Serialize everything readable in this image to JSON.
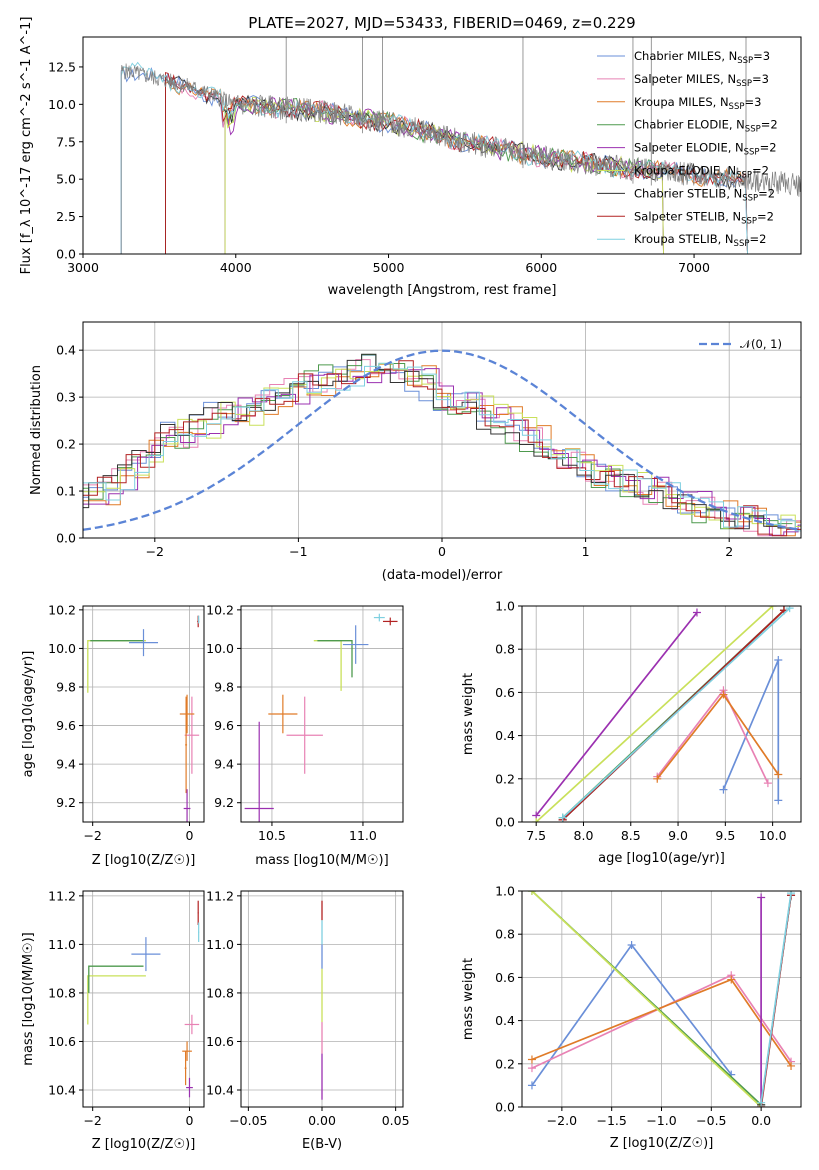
{
  "chart_data": [
    {
      "type": "line",
      "title": "PLATE=2027, MJD=53433, FIBERID=0469, z=0.229",
      "xlabel": "wavelength [Angstrom, rest frame]",
      "ylabel": "Flux [f_λ 10^-17 erg cm^-2 s^-1 A^-1]",
      "xlim": [
        3000,
        7700
      ],
      "ylim": [
        0,
        14.5
      ],
      "xticks": [
        "3000",
        "4000",
        "5000",
        "6000",
        "7000"
      ],
      "yticks": [
        "0.0",
        "2.5",
        "5.0",
        "7.5",
        "10.0",
        "12.5"
      ],
      "grid": false,
      "legend_position": "top-right",
      "legend": [
        {
          "name": "Chabrier MILES, N",
          "sub": "SSP",
          "suffix": "=3",
          "color": "#6a8fd8"
        },
        {
          "name": "Salpeter MILES, N",
          "sub": "SSP",
          "suffix": "=3",
          "color": "#e882b4"
        },
        {
          "name": "Kroupa MILES, N",
          "sub": "SSP",
          "suffix": "=3",
          "color": "#e07b28"
        },
        {
          "name": "Chabrier ELODIE, N",
          "sub": "SSP",
          "suffix": "=2",
          "color": "#4e9a4e"
        },
        {
          "name": "Salpeter ELODIE, N",
          "sub": "SSP",
          "suffix": "=2",
          "color": "#9b30b0"
        },
        {
          "name": "Kroupa ELODIE, N",
          "sub": "SSP",
          "suffix": "=2",
          "color": "#c9e05a"
        },
        {
          "name": "Chabrier STELIB, N",
          "sub": "SSP",
          "suffix": "=2",
          "color": "#333333"
        },
        {
          "name": "Salpeter STELIB, N",
          "sub": "SSP",
          "suffix": "=2",
          "color": "#b22222"
        },
        {
          "name": "Kroupa STELIB, N",
          "sub": "SSP",
          "suffix": "=2",
          "color": "#7fd0e0"
        }
      ],
      "data_spectrum": {
        "color": "#808080",
        "x_start": 3250,
        "x_end": 7700,
        "level_at_3300": 12.2,
        "level_at_4000": 10.0,
        "level_at_5000": 8.8,
        "level_at_6000": 6.5,
        "level_at_7000": 5.3,
        "level_at_7700": 4.6
      },
      "model_starts": [
        3250,
        3540,
        3540,
        3930,
        3930,
        3930,
        3540,
        3540,
        3250
      ],
      "model_ends": [
        7350,
        7350,
        7350,
        6800,
        6800,
        6800,
        7350,
        7350,
        7350
      ],
      "spikes": [
        4330,
        4830,
        4960,
        5880,
        6600,
        6720,
        7340
      ]
    },
    {
      "type": "bar",
      "xlabel": "(data-model)/error",
      "ylabel": "Normed distribution",
      "xlim": [
        -2.5,
        2.5
      ],
      "ylim": [
        0,
        0.46
      ],
      "xticks": [
        "-2",
        "-1",
        "0",
        "1",
        "2"
      ],
      "yticks": [
        "0.0",
        "0.1",
        "0.2",
        "0.3",
        "0.4"
      ],
      "grid": true,
      "legend_position": "top-right",
      "gaussian_label": "𝒩(0, 1)",
      "gaussian_color": "#5b84d6",
      "bin_start": -2.5,
      "bin_width": 0.1,
      "base_hist": [
        0.09,
        0.1,
        0.12,
        0.15,
        0.18,
        0.2,
        0.23,
        0.22,
        0.24,
        0.26,
        0.27,
        0.27,
        0.29,
        0.3,
        0.31,
        0.32,
        0.33,
        0.34,
        0.35,
        0.36,
        0.37,
        0.36,
        0.35,
        0.34,
        0.32,
        0.3,
        0.29,
        0.28,
        0.26,
        0.25,
        0.23,
        0.21,
        0.19,
        0.17,
        0.16,
        0.14,
        0.13,
        0.12,
        0.11,
        0.1,
        0.09,
        0.08,
        0.07,
        0.06,
        0.05,
        0.04,
        0.04,
        0.03,
        0.03,
        0.02
      ],
      "series_colors": [
        "#6a8fd8",
        "#e882b4",
        "#e07b28",
        "#4e9a4e",
        "#9b30b0",
        "#c9e05a",
        "#333333",
        "#b22222",
        "#7fd0e0"
      ]
    },
    {
      "type": "scatter",
      "xlabel": "Z [log10(Z/Z☉)]",
      "ylabel": "age [log10(age/yr)]",
      "xlim": [
        -2.2,
        0.3
      ],
      "ylim": [
        9.1,
        10.22
      ],
      "xticks": [
        {
          "v": -2,
          "t": "−2"
        },
        {
          "v": 0,
          "t": "0"
        }
      ],
      "yticks": [
        {
          "v": 9.2,
          "t": "9.2"
        },
        {
          "v": 9.4,
          "t": "9.4"
        },
        {
          "v": 9.6,
          "t": "9.6"
        },
        {
          "v": 9.8,
          "t": "9.8"
        },
        {
          "v": 10.0,
          "t": "10.0"
        },
        {
          "v": 10.2,
          "t": "10.2"
        }
      ],
      "points": [
        {
          "x": -0.95,
          "y": 10.03,
          "ex": 0.3,
          "ey": 0.07,
          "c": "#6a8fd8"
        },
        {
          "x": 0.05,
          "y": 9.55,
          "ex": 0.15,
          "ey": 0.2,
          "c": "#e882b4"
        },
        {
          "x": -0.05,
          "y": 9.66,
          "ex": 0.15,
          "ey": 0.1,
          "c": "#e07b28"
        },
        {
          "x": -0.07,
          "y": 9.5,
          "ex": 0.02,
          "ey": 0.25,
          "c": "#e07b28"
        },
        {
          "x": -0.05,
          "y": 9.17,
          "ex": 0.07,
          "ey": 0.1,
          "c": "#9b30b0"
        },
        {
          "x": 0.18,
          "y": 10.14,
          "ex": 0.02,
          "ey": 0.03,
          "c": "#b22222"
        },
        {
          "x": 0.19,
          "y": 10.15,
          "ex": 0.01,
          "ey": 0.02,
          "c": "#7fd0e0"
        }
      ],
      "lines": [
        {
          "x": [
            -2.1,
            -2.1,
            -0.9
          ],
          "y": [
            9.77,
            10.04,
            10.04
          ],
          "c": "#c9e05a"
        },
        {
          "x": [
            -2.05,
            -0.95
          ],
          "y": [
            10.04,
            10.04
          ],
          "c": "#4e9a4e"
        }
      ]
    },
    {
      "type": "scatter",
      "xlabel": "mass [log10(M/M☉)]",
      "ylabel": "",
      "xlim": [
        10.33,
        11.22
      ],
      "ylim": [
        9.1,
        10.22
      ],
      "xticks": [
        {
          "v": 10.5,
          "t": "10.5"
        },
        {
          "v": 11.0,
          "t": "11.0"
        }
      ],
      "yticks": [
        {
          "v": 9.2,
          "t": "9.2"
        },
        {
          "v": 9.4,
          "t": "9.4"
        },
        {
          "v": 9.6,
          "t": "9.6"
        },
        {
          "v": 9.8,
          "t": "9.8"
        },
        {
          "v": 10.0,
          "t": "10.0"
        },
        {
          "v": 10.2,
          "t": "10.2"
        }
      ],
      "points": [
        {
          "x": 10.96,
          "y": 10.02,
          "ex": 0.07,
          "ey": 0.1,
          "c": "#6a8fd8"
        },
        {
          "x": 10.68,
          "y": 9.55,
          "ex": 0.1,
          "ey": 0.2,
          "c": "#e882b4"
        },
        {
          "x": 10.56,
          "y": 9.66,
          "ex": 0.08,
          "ey": 0.1,
          "c": "#e07b28"
        },
        {
          "x": 10.43,
          "y": 9.17,
          "ex": 0.08,
          "ey": 0.45,
          "c": "#9b30b0"
        },
        {
          "x": 11.15,
          "y": 10.14,
          "ex": 0.04,
          "ey": 0.02,
          "c": "#b22222"
        },
        {
          "x": 11.09,
          "y": 10.16,
          "ex": 0.03,
          "ey": 0.02,
          "c": "#7fd0e0"
        }
      ],
      "lines": [
        {
          "x": [
            10.88,
            10.88,
            10.73
          ],
          "y": [
            9.78,
            10.04,
            10.04
          ],
          "c": "#c9e05a"
        },
        {
          "x": [
            10.94,
            10.94,
            10.75
          ],
          "y": [
            9.85,
            10.04,
            10.04
          ],
          "c": "#4e9a4e"
        }
      ]
    },
    {
      "type": "line",
      "xlabel": "age [log10(age/yr)]",
      "ylabel": "mass weight",
      "xlim": [
        7.35,
        10.3
      ],
      "ylim": [
        0,
        1
      ],
      "xticks": [
        {
          "v": 7.5,
          "t": "7.5"
        },
        {
          "v": 8.0,
          "t": "8.0"
        },
        {
          "v": 8.5,
          "t": "8.5"
        },
        {
          "v": 9.0,
          "t": "9.0"
        },
        {
          "v": 9.5,
          "t": "9.5"
        },
        {
          "v": 10.0,
          "t": "10.0"
        }
      ],
      "yticks": [
        {
          "v": 0,
          "t": "0.0"
        },
        {
          "v": 0.2,
          "t": "0.2"
        },
        {
          "v": 0.4,
          "t": "0.4"
        },
        {
          "v": 0.6,
          "t": "0.6"
        },
        {
          "v": 0.8,
          "t": "0.8"
        },
        {
          "v": 1.0,
          "t": "1.0"
        }
      ],
      "series": [
        {
          "x": [
            9.48,
            10.06,
            10.06
          ],
          "y": [
            0.15,
            0.75,
            0.1
          ],
          "c": "#6a8fd8"
        },
        {
          "x": [
            8.78,
            9.48,
            9.95
          ],
          "y": [
            0.21,
            0.61,
            0.18
          ],
          "c": "#e882b4"
        },
        {
          "x": [
            8.78,
            9.48,
            10.06
          ],
          "y": [
            0.2,
            0.59,
            0.22
          ],
          "c": "#e07b28"
        },
        {
          "x": [
            7.5,
            9.2
          ],
          "y": [
            0.03,
            0.97
          ],
          "c": "#9b30b0"
        },
        {
          "x": [
            7.78,
            10.12
          ],
          "y": [
            0.02,
            0.98
          ],
          "c": "#4e9a4e"
        },
        {
          "x": [
            7.5,
            10.0
          ],
          "y": [
            0.0,
            1.0
          ],
          "c": "#c9e05a"
        },
        {
          "x": [
            7.78,
            10.12
          ],
          "y": [
            0.01,
            0.98
          ],
          "c": "#333333"
        },
        {
          "x": [
            7.78,
            10.12
          ],
          "y": [
            0.01,
            0.98
          ],
          "c": "#b22222"
        },
        {
          "x": [
            7.78,
            10.18
          ],
          "y": [
            0.02,
            0.99
          ],
          "c": "#7fd0e0"
        }
      ]
    },
    {
      "type": "scatter",
      "xlabel": "Z [log10(Z/Z☉)]",
      "ylabel": "mass [log10(M/M☉)]",
      "xlim": [
        -2.2,
        0.3
      ],
      "ylim": [
        10.33,
        11.22
      ],
      "xticks": [
        {
          "v": -2,
          "t": "−2"
        },
        {
          "v": 0,
          "t": "0"
        }
      ],
      "yticks": [
        {
          "v": 10.4,
          "t": "10.4"
        },
        {
          "v": 10.6,
          "t": "10.6"
        },
        {
          "v": 10.8,
          "t": "10.8"
        },
        {
          "v": 11.0,
          "t": "11.0"
        },
        {
          "v": 11.2,
          "t": "11.2"
        }
      ],
      "points": [
        {
          "x": -0.9,
          "y": 10.96,
          "ex": 0.3,
          "ey": 0.07,
          "c": "#6a8fd8"
        },
        {
          "x": 0.05,
          "y": 10.67,
          "ex": 0.15,
          "ey": 0.04,
          "c": "#e882b4"
        },
        {
          "x": -0.05,
          "y": 10.56,
          "ex": 0.1,
          "ey": 0.04,
          "c": "#e07b28"
        },
        {
          "x": -0.08,
          "y": 10.49,
          "ex": 0.02,
          "ey": 0.07,
          "c": "#e07b28"
        },
        {
          "x": 0.0,
          "y": 10.41,
          "ex": 0.07,
          "ey": 0.04,
          "c": "#9b30b0"
        },
        {
          "x": 0.18,
          "y": 11.13,
          "ex": 0.01,
          "ey": 0.05,
          "c": "#b22222"
        },
        {
          "x": 0.19,
          "y": 11.05,
          "ex": 0.01,
          "ey": 0.04,
          "c": "#7fd0e0"
        }
      ],
      "lines": [
        {
          "x": [
            -2.1,
            -2.1,
            -0.9
          ],
          "y": [
            10.67,
            10.87,
            10.87
          ],
          "c": "#c9e05a"
        },
        {
          "x": [
            -2.08,
            -2.08,
            -0.95
          ],
          "y": [
            10.8,
            10.91,
            10.91
          ],
          "c": "#4e9a4e"
        }
      ]
    },
    {
      "type": "scatter",
      "xlabel": "E(B-V)",
      "ylabel": "",
      "xlim": [
        -0.055,
        0.055
      ],
      "ylim": [
        10.33,
        11.22
      ],
      "xticks": [
        {
          "v": -0.05,
          "t": "−0.05"
        },
        {
          "v": 0,
          "t": "0.00"
        },
        {
          "v": 0.05,
          "t": "0.05"
        }
      ],
      "yticks": [
        {
          "v": 10.4,
          "t": "10.4"
        },
        {
          "v": 10.6,
          "t": "10.6"
        },
        {
          "v": 10.8,
          "t": "10.8"
        },
        {
          "v": 11.0,
          "t": "11.0"
        },
        {
          "v": 11.2,
          "t": "11.2"
        }
      ],
      "segments": [
        {
          "y1": 10.36,
          "y2": 10.55,
          "c": "#9b30b0"
        },
        {
          "y1": 10.55,
          "y2": 10.68,
          "c": "#e882b4"
        },
        {
          "y1": 10.68,
          "y2": 10.9,
          "c": "#c9e05a"
        },
        {
          "y1": 10.9,
          "y2": 11.0,
          "c": "#6a8fd8"
        },
        {
          "y1": 11.0,
          "y2": 11.1,
          "c": "#7fd0e0"
        },
        {
          "y1": 11.1,
          "y2": 11.18,
          "c": "#b22222"
        }
      ]
    },
    {
      "type": "line",
      "xlabel": "Z [log10(Z/Z☉)]",
      "ylabel": "mass weight",
      "xlim": [
        -2.4,
        0.4
      ],
      "ylim": [
        0,
        1
      ],
      "xticks": [
        {
          "v": -2,
          "t": "−2.0"
        },
        {
          "v": -1.5,
          "t": "−1.5"
        },
        {
          "v": -1,
          "t": "−1.0"
        },
        {
          "v": -0.5,
          "t": "−0.5"
        },
        {
          "v": 0,
          "t": "0.0"
        }
      ],
      "yticks": [
        {
          "v": 0,
          "t": "0.0"
        },
        {
          "v": 0.2,
          "t": "0.2"
        },
        {
          "v": 0.4,
          "t": "0.4"
        },
        {
          "v": 0.6,
          "t": "0.6"
        },
        {
          "v": 0.8,
          "t": "0.8"
        },
        {
          "v": 1.0,
          "t": "1.0"
        }
      ],
      "series": [
        {
          "x": [
            -2.3,
            -1.3,
            -0.3
          ],
          "y": [
            0.1,
            0.75,
            0.15
          ],
          "c": "#6a8fd8"
        },
        {
          "x": [
            -2.3,
            -0.3,
            0.3
          ],
          "y": [
            0.18,
            0.61,
            0.21
          ],
          "c": "#e882b4"
        },
        {
          "x": [
            -2.3,
            -0.3,
            0.3
          ],
          "y": [
            0.22,
            0.59,
            0.19
          ],
          "c": "#e07b28"
        },
        {
          "x": [
            0.0,
            0.0
          ],
          "y": [
            0.97,
            0.0
          ],
          "c": "#9b30b0"
        },
        {
          "x": [
            -2.3,
            0.0
          ],
          "y": [
            1.0,
            0.01
          ],
          "c": "#4e9a4e"
        },
        {
          "x": [
            -2.3,
            0.0
          ],
          "y": [
            1.0,
            0.0
          ],
          "c": "#c9e05a"
        },
        {
          "x": [
            0.0,
            0.3
          ],
          "y": [
            0.01,
            0.98
          ],
          "c": "#333333"
        },
        {
          "x": [
            0.0,
            0.3
          ],
          "y": [
            0.0,
            0.98
          ],
          "c": "#b22222"
        },
        {
          "x": [
            0.0,
            0.3
          ],
          "y": [
            0.02,
            0.99
          ],
          "c": "#7fd0e0"
        }
      ]
    }
  ]
}
